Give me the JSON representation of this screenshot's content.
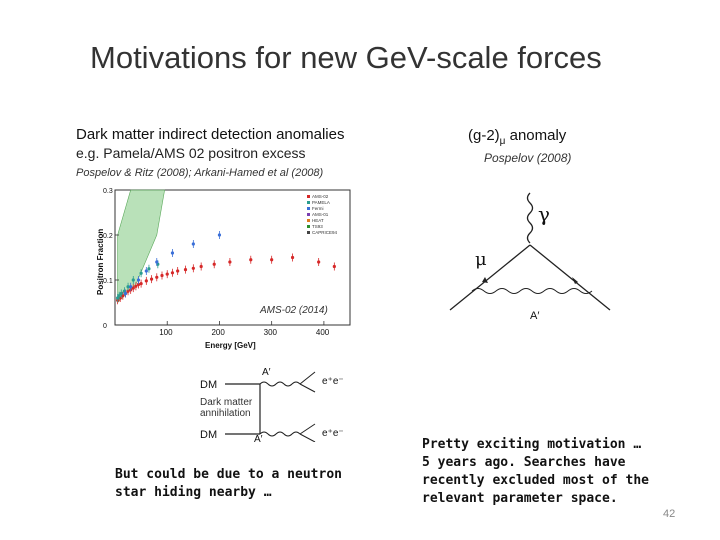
{
  "slide": {
    "title": "Motivations for new GeV-scale forces",
    "left_header_line1": "Dark matter indirect detection anomalies",
    "left_header_line2": "e.g. Pamela/AMS 02 positron excess",
    "left_citation": "Pospelov & Ritz (2008); Arkani-Hamed et al (2008)",
    "right_header": "(g-2)",
    "right_header_sub": "μ",
    "right_header_tail": " anomaly",
    "right_citation": "Pospelov (2008)",
    "bottom_left_line1": "But could be due to a neutron",
    "bottom_left_line2": "star hiding nearby …",
    "bottom_right_line1": "Pretty exciting motivation …",
    "bottom_right_line2": "5 years ago. Searches have",
    "bottom_right_line3": "recently excluded most of the",
    "bottom_right_line4": "relevant parameter space.",
    "page_number": "42"
  },
  "chart_data": {
    "type": "scatter",
    "title": "",
    "xlabel": "Energy [GeV]",
    "ylabel": "Positron Fraction",
    "xlim": [
      0,
      450
    ],
    "ylim": [
      0,
      0.3
    ],
    "x_ticks": [
      "100",
      "200",
      "300",
      "400"
    ],
    "y_ticks": [
      "0",
      "0.1",
      "0.2",
      "0.3"
    ],
    "annotation": "AMS-02 (2014)",
    "legend_position": "top-right",
    "legend": [
      "AMS-02",
      "PAMELA",
      "Fermi",
      "AMS-01",
      "HEAT",
      "TS93",
      "CAPRICE94"
    ],
    "series": [
      {
        "name": "AMS-02",
        "color": "#d62828",
        "x": [
          5,
          10,
          15,
          20,
          25,
          30,
          35,
          40,
          45,
          50,
          60,
          70,
          80,
          90,
          100,
          110,
          120,
          135,
          150,
          165,
          190,
          220,
          260,
          300,
          340,
          390,
          420
        ],
        "y": [
          0.055,
          0.06,
          0.065,
          0.07,
          0.075,
          0.078,
          0.082,
          0.086,
          0.09,
          0.092,
          0.098,
          0.102,
          0.106,
          0.11,
          0.113,
          0.116,
          0.12,
          0.123,
          0.126,
          0.13,
          0.135,
          0.14,
          0.145,
          0.145,
          0.15,
          0.14,
          0.13
        ]
      },
      {
        "name": "PAMELA",
        "color": "#2a9d8f",
        "x": [
          5,
          8,
          12,
          18,
          25,
          35,
          50,
          65,
          82
        ],
        "y": [
          0.06,
          0.065,
          0.07,
          0.075,
          0.085,
          0.1,
          0.115,
          0.125,
          0.135
        ]
      },
      {
        "name": "Fermi",
        "color": "#3a6fd8",
        "x": [
          20,
          30,
          45,
          60,
          80,
          110,
          150,
          200
        ],
        "y": [
          0.07,
          0.085,
          0.1,
          0.12,
          0.14,
          0.16,
          0.18,
          0.2
        ]
      }
    ]
  },
  "annihilation_diagram": {
    "dm_top": "DM",
    "dm_bottom": "DM",
    "label_line1": "Dark matter",
    "label_line2": "annihilation",
    "aprime_top": "A′",
    "aprime_bottom": "A′",
    "ee_top": "e⁺e⁻",
    "ee_bottom": "e⁺e⁻"
  },
  "feynman_diagram": {
    "photon": "γ",
    "muon": "μ",
    "aprime": "A′"
  }
}
